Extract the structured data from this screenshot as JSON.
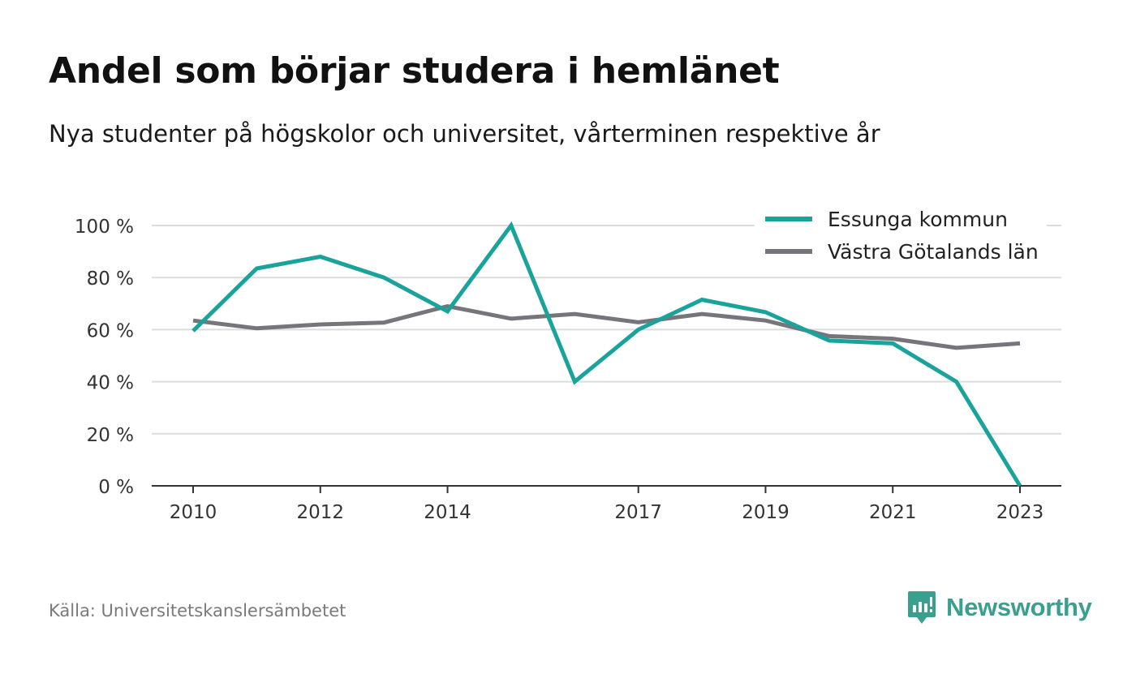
{
  "header": {
    "title": "Andel som börjar studera i hemlänet",
    "subtitle": "Nya studenter på högskolor och universitet, vårterminen respektive år"
  },
  "footer": {
    "source": "Källa: Universitetskanslersämbetet",
    "brand": "Newsworthy"
  },
  "colors": {
    "essunga": "#1aa39b",
    "vastra": "#76757c",
    "grid": "#dcdcdc",
    "axis": "#333333",
    "tick_text": "#333333",
    "brand": "#3a9f8e"
  },
  "icons": {
    "brand": "newsworthy-logo-icon"
  },
  "chart_data": {
    "type": "line",
    "x": [
      2010,
      2011,
      2012,
      2013,
      2014,
      2015,
      2016,
      2017,
      2018,
      2019,
      2020,
      2021,
      2022,
      2023
    ],
    "xticks": [
      2010,
      2012,
      2014,
      2017,
      2019,
      2021,
      2023
    ],
    "ylim": [
      0,
      100
    ],
    "yticks": [
      0,
      20,
      40,
      60,
      80,
      100
    ],
    "ytick_labels": [
      "0 %",
      "20 %",
      "40 %",
      "60 %",
      "80 %",
      "100 %"
    ],
    "xlabel": "",
    "ylabel": "",
    "grid": true,
    "legend": "top-right",
    "series": [
      {
        "name": "Essunga kommun",
        "color": "#1aa39b",
        "values": [
          59.5,
          83.5,
          88,
          80,
          67,
          100,
          40,
          60,
          71.5,
          66.7,
          55.8,
          54.7,
          40,
          0
        ]
      },
      {
        "name": "Västra Götalands län",
        "color": "#76757c",
        "values": [
          63.5,
          60.5,
          62,
          62.7,
          69,
          64.2,
          66,
          62.8,
          66,
          63.5,
          57.5,
          56.5,
          53,
          54.7
        ]
      }
    ]
  }
}
